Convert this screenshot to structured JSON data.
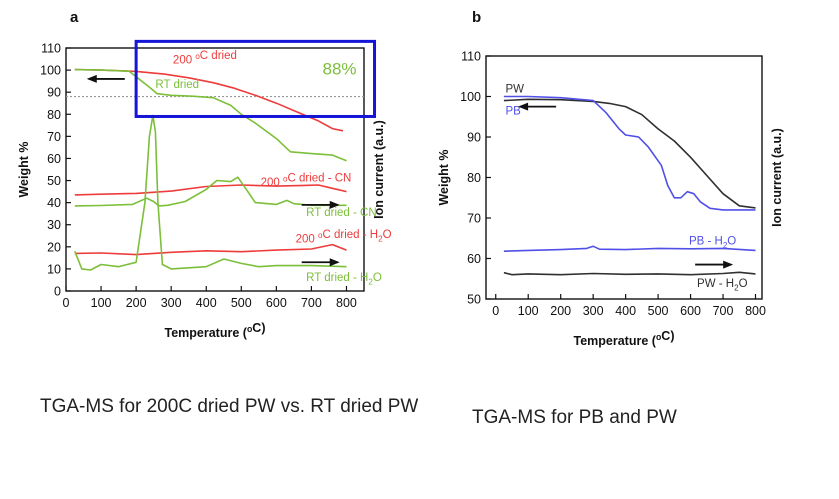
{
  "captions": {
    "a": "TGA-MS for 200C dried PW vs. RT dried PW",
    "b": "TGA-MS for PB and PW"
  },
  "colors": {
    "red": "#ee3b3b",
    "green": "#7cbf3a",
    "blue": "#5050e8",
    "black": "#303030",
    "box": "#1515d8",
    "dash": "#999999"
  },
  "chart_data": [
    {
      "panel": "a",
      "type": "line",
      "xlabel": "Temperature (°C)",
      "ylabel": "Weight %",
      "ylabel_right": "Ion current (a.u.)",
      "xlim": [
        0,
        850
      ],
      "ylim": [
        0,
        110
      ],
      "xticks": [
        0,
        100,
        200,
        300,
        400,
        500,
        600,
        700,
        800
      ],
      "yticks": [
        0,
        10,
        20,
        30,
        40,
        50,
        60,
        70,
        80,
        90,
        100,
        110
      ],
      "reference_line": 88,
      "highlight": {
        "text": "88%",
        "x_range": [
          200,
          880
        ],
        "y_range": [
          79,
          113
        ]
      },
      "series": [
        {
          "name": "200 °C dried",
          "color": "red",
          "label_pos": [
            305,
            103
          ],
          "x": [
            25,
            100,
            200,
            280,
            350,
            420,
            480,
            540,
            600,
            660,
            720,
            760,
            790
          ],
          "y": [
            100.2,
            100,
            99.4,
            98.2,
            96.5,
            94.3,
            91.8,
            88.6,
            85,
            81,
            77,
            73.5,
            72.5
          ]
        },
        {
          "name": "RT dried",
          "color": "green",
          "label_pos": [
            255,
            92
          ],
          "x": [
            25,
            100,
            180,
            240,
            260,
            300,
            360,
            420,
            470,
            500,
            540,
            600,
            640,
            700,
            760,
            800
          ],
          "y": [
            100.2,
            100,
            99.5,
            92,
            89.3,
            88.6,
            88.2,
            87.5,
            84,
            80,
            76,
            69,
            63,
            62.2,
            61.5,
            59
          ]
        },
        {
          "name": "200 °C dried - CN",
          "color": "red",
          "label_pos": [
            555,
            47.5
          ],
          "x": [
            25,
            100,
            200,
            300,
            400,
            500,
            600,
            680,
            720,
            760,
            800
          ],
          "y": [
            43.5,
            43.8,
            44.2,
            45.2,
            47.3,
            48,
            47.5,
            47.8,
            48,
            46.5,
            45
          ]
        },
        {
          "name": "RT dried - CN",
          "color": "green",
          "label_pos": [
            685,
            34
          ],
          "x": [
            25,
            100,
            190,
            230,
            250,
            265,
            290,
            340,
            400,
            430,
            470,
            490,
            510,
            540,
            600,
            630,
            650,
            700,
            800
          ],
          "y": [
            38.5,
            38.7,
            39.2,
            42,
            40.5,
            38.5,
            38.8,
            40.5,
            46,
            50,
            49.5,
            51.5,
            47,
            40,
            39.2,
            41,
            39.5,
            38.8,
            38.8
          ]
        },
        {
          "name": "200 °C dried - H2O",
          "color": "red",
          "label_pos": [
            655,
            22
          ],
          "x": [
            25,
            100,
            200,
            300,
            400,
            500,
            600,
            700,
            760,
            800
          ],
          "y": [
            17,
            17.2,
            16.5,
            17.5,
            18.2,
            17.8,
            18.5,
            19,
            21,
            18.5
          ]
        },
        {
          "name": "RT dried - H2O",
          "color": "green",
          "label_pos": [
            685,
            4.5
          ],
          "x": [
            25,
            45,
            70,
            100,
            150,
            200,
            225,
            238,
            248,
            255,
            262,
            275,
            300,
            350,
            400,
            450,
            500,
            550,
            600,
            700,
            800
          ],
          "y": [
            18,
            10,
            9.5,
            12,
            11,
            13,
            40,
            70,
            79.5,
            72,
            40,
            12,
            10,
            10.5,
            11,
            14.5,
            12.5,
            11,
            11.5,
            11.5,
            11
          ]
        }
      ],
      "arrows": [
        {
          "at": [
            65,
            96
          ],
          "direction": "left"
        },
        {
          "at": [
            775,
            39
          ],
          "direction": "right"
        },
        {
          "at": [
            775,
            13
          ],
          "direction": "right"
        }
      ]
    },
    {
      "panel": "b",
      "type": "line",
      "xlabel": "Temperature (°C)",
      "ylabel": "Weight %",
      "ylabel_right": "Ion current (a.u.)",
      "xlim": [
        -30,
        820
      ],
      "ylim": [
        50,
        110
      ],
      "xticks": [
        0,
        100,
        200,
        300,
        400,
        500,
        600,
        700,
        800
      ],
      "yticks": [
        50,
        60,
        70,
        80,
        90,
        100,
        110
      ],
      "series": [
        {
          "name": "PW",
          "color": "black",
          "label_pos": [
            30,
            101
          ],
          "x": [
            25,
            100,
            200,
            300,
            350,
            400,
            450,
            500,
            550,
            600,
            650,
            700,
            750,
            800
          ],
          "y": [
            99,
            99.3,
            99.2,
            98.8,
            98.3,
            97.5,
            95.5,
            92,
            89,
            85,
            80.5,
            76,
            73,
            72.5
          ]
        },
        {
          "name": "PB",
          "color": "blue",
          "label_pos": [
            30,
            95.5
          ],
          "x": [
            25,
            100,
            200,
            300,
            340,
            380,
            400,
            440,
            470,
            510,
            530,
            550,
            570,
            590,
            610,
            630,
            660,
            700,
            800
          ],
          "y": [
            100,
            100,
            99.7,
            99,
            96,
            92,
            90.5,
            90,
            87.5,
            83,
            78,
            75,
            75,
            76.5,
            76,
            74,
            72.4,
            72,
            72
          ]
        },
        {
          "name": "PB - H2O",
          "color": "blue",
          "label_pos": [
            595,
            63.5
          ],
          "x": [
            25,
            100,
            200,
            280,
            300,
            320,
            400,
            500,
            600,
            700,
            800
          ],
          "y": [
            61.8,
            62,
            62.2,
            62.5,
            63,
            62.3,
            62.2,
            62.5,
            62.4,
            62.5,
            62
          ]
        },
        {
          "name": "PW - H2O",
          "color": "black",
          "label_pos": [
            620,
            53
          ],
          "x": [
            25,
            50,
            100,
            200,
            300,
            400,
            500,
            600,
            700,
            750,
            800
          ],
          "y": [
            56.5,
            56,
            56.2,
            56,
            56.3,
            56.1,
            56.2,
            56,
            56.3,
            56.6,
            56.2
          ]
        }
      ],
      "arrows": [
        {
          "at": [
            75,
            97.5
          ],
          "direction": "left"
        },
        {
          "at": [
            725,
            58.5
          ],
          "direction": "right"
        }
      ]
    }
  ]
}
